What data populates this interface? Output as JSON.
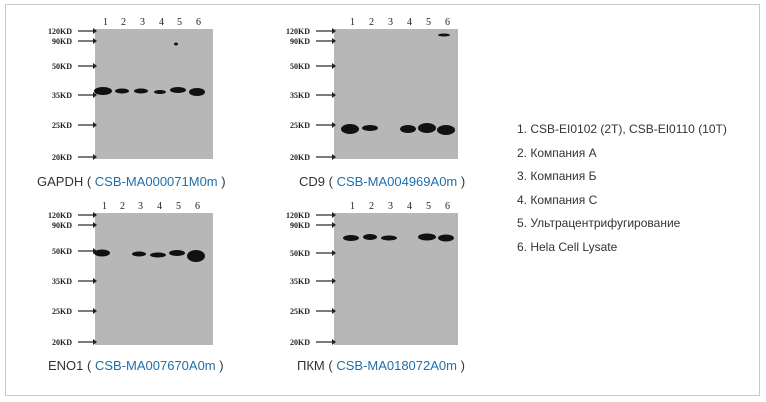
{
  "markers": [
    "120KD",
    "90KD",
    "50KD",
    "35KD",
    "25KD",
    "20KD"
  ],
  "lanes": [
    "1",
    "2",
    "3",
    "4",
    "5",
    "6"
  ],
  "blots": [
    {
      "target": "GAPDH",
      "catalog": "CSB-MA000071M0m",
      "band_lanes": [
        1,
        2,
        3,
        4,
        5,
        6
      ],
      "band_marker_position": "35KD"
    },
    {
      "target": "CD9",
      "catalog": "CSB-MA004969A0m",
      "band_lanes": [
        1,
        2,
        4,
        5,
        6
      ],
      "band_marker_position": "25KD"
    },
    {
      "target": "ENO1",
      "catalog": "CSB-MA007670A0m",
      "band_lanes": [
        1,
        3,
        4,
        5,
        6
      ],
      "band_marker_position": "50KD"
    },
    {
      "target": "ПКМ",
      "catalog": "CSB-MA018072A0m",
      "band_lanes": [
        1,
        2,
        3,
        5,
        6
      ],
      "band_marker_position": "90KD-50KD"
    }
  ],
  "legend": [
    "1. CSB-EI0102 (2T), CSB-EI0110 (10T)",
    "2. Компания A",
    "3. Компания Б",
    "4. Компания C",
    "5. Ультрацентрифугирование",
    "6. Hela Cell Lysate"
  ],
  "colors": {
    "membrane": "#b7b7b7",
    "band": "#111111",
    "link": "#1f6fa8",
    "text": "#333333"
  }
}
